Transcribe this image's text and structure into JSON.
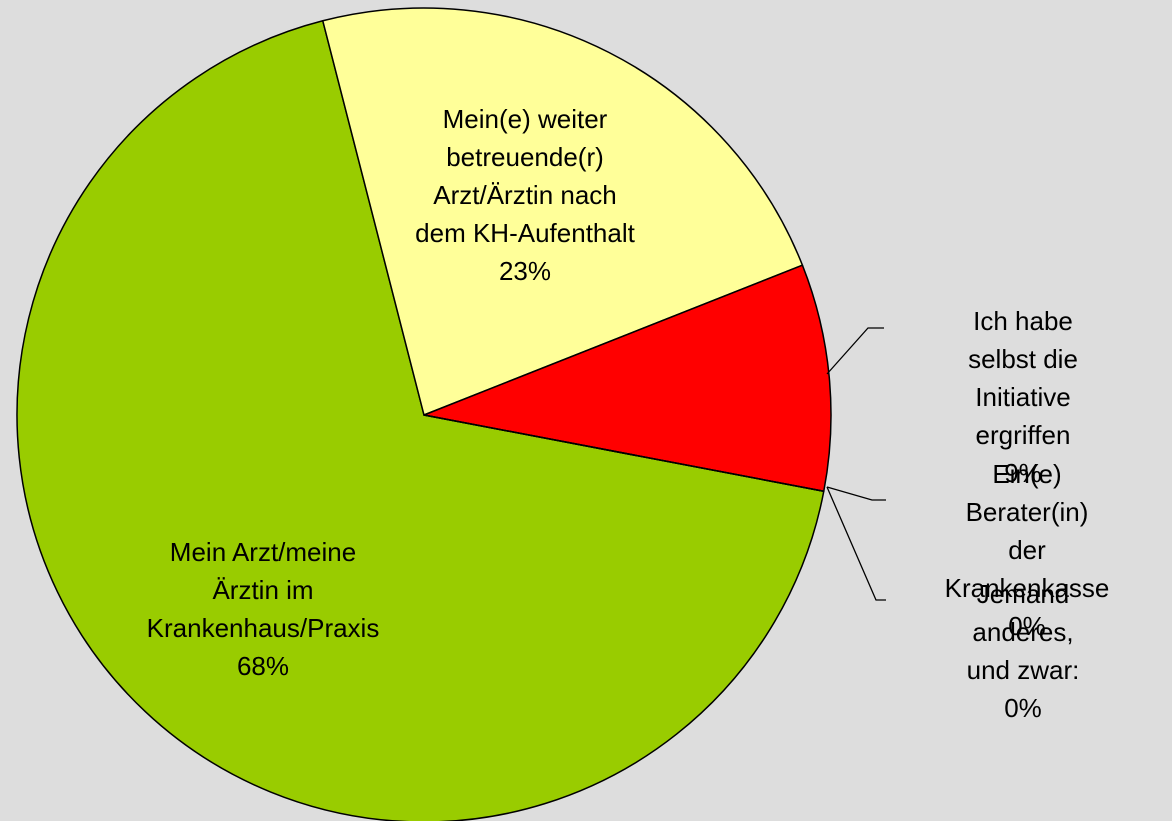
{
  "chart_data": {
    "type": "pie",
    "categories": [
      "Mein Arzt/meine\nÄrztin im\nKrankenhaus/Praxis",
      "Mein(e) weiter\nbetreuende(r)\nArzt/Ärztin nach\ndem KH-Aufenthalt",
      "Ich habe selbst die\nInitiative ergriffen",
      "Ein(e) Berater(in)\nder Krankenkasse",
      "Jemand anderes,\nund zwar:"
    ],
    "values": [
      68,
      23,
      9,
      0,
      0
    ],
    "value_labels": [
      "68%",
      "23%",
      "9%",
      "0%",
      "0%"
    ],
    "colors": [
      "#99cc00",
      "#ffff99",
      "#ff0000",
      "#3366ff",
      "#ff9900"
    ]
  }
}
